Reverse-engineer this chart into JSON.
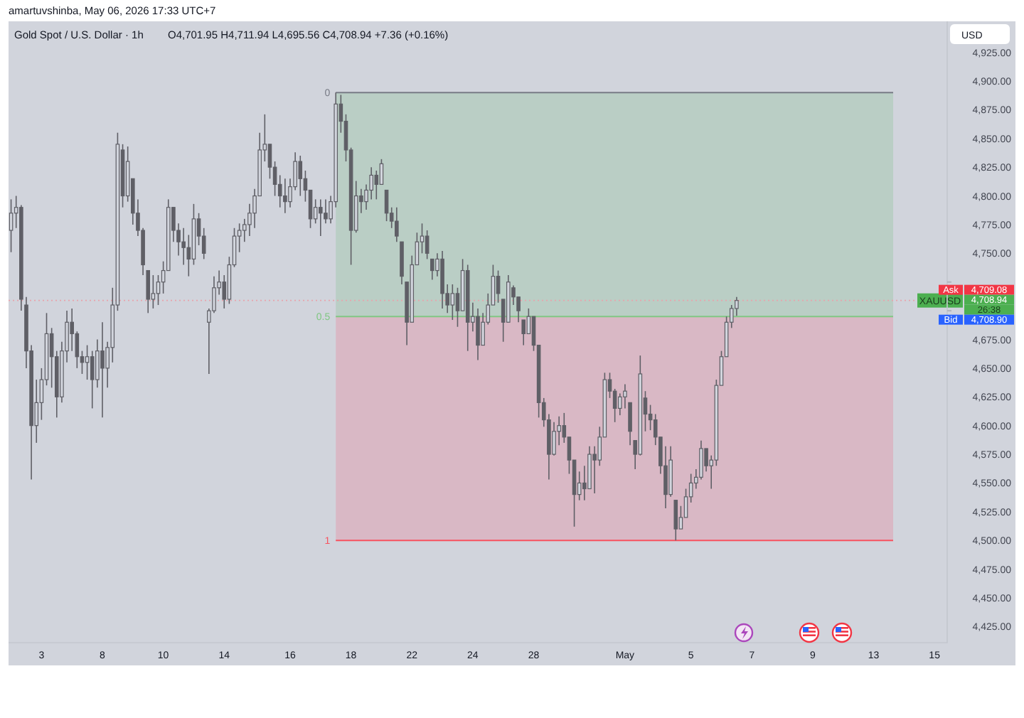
{
  "chart_data": {
    "type": "candlestick",
    "title": "Gold Spot / U.S. Dollar · 1h",
    "ylabel": "USD",
    "color": "#5f5f66",
    "annotations": [
      "amartuvshinba, May 06, 2026 17:33 UTC+7",
      "O4,701.95  H4,711.94  L4,695.56  C4,708.94  +7.36 (+0.16%)",
      "Ask",
      "4,709.08",
      "4,708.94",
      "26:38",
      "Bid",
      "4,708.90",
      "0",
      "0.5",
      "1"
    ],
    "categories": [
      null,
      null,
      null,
      null,
      null,
      null,
      "3",
      null,
      null,
      null,
      null,
      null,
      null,
      null,
      null,
      null,
      null,
      null,
      "8",
      null,
      null,
      null,
      null,
      null,
      null,
      null,
      null,
      null,
      null,
      null,
      "10",
      null,
      null,
      null,
      null,
      null,
      null,
      null,
      null,
      null,
      null,
      null,
      "14",
      null,
      null,
      null,
      null,
      null,
      null,
      null,
      null,
      null,
      null,
      null,
      null,
      "16",
      null,
      null,
      null,
      null,
      null,
      null,
      null,
      null,
      null,
      null,
      null,
      "18",
      null,
      null,
      null,
      null,
      null,
      null,
      null,
      null,
      null,
      null,
      null,
      "22",
      null,
      null,
      null,
      null,
      null,
      null,
      null,
      null,
      null,
      null,
      null,
      "24",
      null,
      null,
      null,
      null,
      null,
      null,
      null,
      null,
      null,
      null,
      null,
      "28",
      null,
      null,
      null,
      null,
      null,
      null,
      null,
      null,
      null,
      null,
      null,
      null,
      null,
      null,
      null,
      null,
      null,
      "May",
      null,
      null,
      null,
      null,
      null,
      null,
      null,
      null,
      null,
      null,
      null,
      null,
      "5",
      null,
      null,
      null,
      null,
      null,
      null,
      null,
      null,
      null,
      null,
      null,
      "7",
      null,
      null,
      null,
      null,
      null,
      null,
      null,
      null,
      null,
      null,
      null,
      "9",
      null,
      null,
      null,
      null,
      null,
      null,
      null,
      null,
      null,
      null,
      null,
      "13",
      null,
      null,
      null,
      null,
      null,
      null,
      null,
      null,
      null,
      null,
      null,
      "15",
      null,
      null
    ],
    "ylim": [
      4411,
      4952
    ],
    "yticks": [
      {
        "value": 4425,
        "label": "4,425.00"
      },
      {
        "value": 4450,
        "label": "4,450.00"
      },
      {
        "value": 4475,
        "label": "4,475.00"
      },
      {
        "value": 4500,
        "label": "4,500.00"
      },
      {
        "value": 4525,
        "label": "4,525.00"
      },
      {
        "value": 4550,
        "label": "4,550.00"
      },
      {
        "value": 4575,
        "label": "4,575.00"
      },
      {
        "value": 4600,
        "label": "4,600.00"
      },
      {
        "value": 4625,
        "label": "4,625.00"
      },
      {
        "value": 4650,
        "label": "4,650.00"
      },
      {
        "value": 4675,
        "label": "4,675.00"
      },
      {
        "value": 4700,
        "label": null
      },
      {
        "value": 4725,
        "label": null
      },
      {
        "value": 4750,
        "label": "4,750.00"
      },
      {
        "value": 4775,
        "label": "4,775.00"
      },
      {
        "value": 4800,
        "label": "4,800.00"
      },
      {
        "value": 4825,
        "label": "4,825.00"
      },
      {
        "value": 4850,
        "label": "4,850.00"
      },
      {
        "value": 4875,
        "label": "4,875.00"
      },
      {
        "value": 4900,
        "label": "4,900.00"
      },
      {
        "value": 4925,
        "label": "4,925.00"
      }
    ],
    "bands": [
      {
        "axis": "y",
        "from": 4695,
        "to": 4890,
        "color": "#bacec5"
      },
      {
        "axis": "y",
        "from": 4500,
        "to": 4695,
        "color": "#d9b8c5"
      }
    ],
    "ref_lines": [
      {
        "axis": "y",
        "value": 4890,
        "color": "#787b86"
      },
      {
        "axis": "y",
        "value": 4695,
        "color": "#81c784"
      },
      {
        "axis": "y",
        "value": 4500,
        "color": "#f7525f"
      },
      {
        "axis": "y",
        "value": 4708.94,
        "label": "XAUUSD",
        "color": "#e8a3ab",
        "line_style": "dotted"
      }
    ],
    "ohlc": [
      [
        4770,
        4797,
        4751,
        4785
      ],
      [
        4785,
        4800,
        4772,
        4790
      ],
      [
        4790,
        4792,
        4700,
        4710
      ],
      [
        4705,
        4712,
        4650,
        4665
      ],
      [
        4665,
        4670,
        4553,
        4600
      ],
      [
        4600,
        4640,
        4585,
        4620
      ],
      [
        4620,
        4650,
        4605,
        4640
      ],
      [
        4640,
        4698,
        4635,
        4680
      ],
      [
        4680,
        4685,
        4633,
        4660
      ],
      [
        4660,
        4665,
        4607,
        4625
      ],
      [
        4625,
        4673,
        4620,
        4665
      ],
      [
        4665,
        4700,
        4655,
        4690
      ],
      [
        4690,
        4702,
        4665,
        4680
      ],
      [
        4680,
        4682,
        4650,
        4660
      ],
      [
        4660,
        4665,
        4645,
        4655
      ],
      [
        4655,
        4670,
        4640,
        4660
      ],
      [
        4660,
        4665,
        4615,
        4640
      ],
      [
        4640,
        4675,
        4633,
        4665
      ],
      [
        4665,
        4690,
        4607,
        4650
      ],
      [
        4650,
        4673,
        4633,
        4668
      ],
      [
        4668,
        4720,
        4655,
        4705
      ],
      [
        4705,
        4855,
        4700,
        4845
      ],
      [
        4840,
        4845,
        4790,
        4800
      ],
      [
        4800,
        4843,
        4795,
        4830
      ],
      [
        4815,
        4815,
        4775,
        4785
      ],
      [
        4785,
        4797,
        4765,
        4770
      ],
      [
        4770,
        4772,
        4731,
        4740
      ],
      [
        4735,
        4735,
        4698,
        4710
      ],
      [
        4710,
        4731,
        4702,
        4715
      ],
      [
        4715,
        4731,
        4705,
        4725
      ],
      [
        4725,
        4743,
        4715,
        4735
      ],
      [
        4735,
        4797,
        4735,
        4790
      ],
      [
        4790,
        4790,
        4760,
        4770
      ],
      [
        4770,
        4776,
        4748,
        4760
      ],
      [
        4760,
        4772,
        4740,
        4755
      ],
      [
        4755,
        4766,
        4730,
        4745
      ],
      [
        4745,
        4793,
        4740,
        4780
      ],
      [
        4780,
        4785,
        4757,
        4765
      ],
      [
        4765,
        4772,
        4745,
        4750
      ],
      [
        4690,
        4702,
        4645,
        4700
      ],
      [
        4700,
        4730,
        4698,
        4720
      ],
      [
        4720,
        4735,
        4714,
        4725
      ],
      [
        4725,
        4731,
        4702,
        4710
      ],
      [
        4710,
        4747,
        4706,
        4740
      ],
      [
        4740,
        4772,
        4738,
        4765
      ],
      [
        4765,
        4776,
        4751,
        4770
      ],
      [
        4770,
        4780,
        4760,
        4775
      ],
      [
        4775,
        4793,
        4765,
        4785
      ],
      [
        4785,
        4806,
        4772,
        4800
      ],
      [
        4800,
        4855,
        4800,
        4840
      ],
      [
        4840,
        4871,
        4830,
        4845
      ],
      [
        4845,
        4845,
        4815,
        4825
      ],
      [
        4825,
        4830,
        4800,
        4810
      ],
      [
        4810,
        4818,
        4790,
        4800
      ],
      [
        4800,
        4815,
        4785,
        4795
      ],
      [
        4795,
        4815,
        4790,
        4808
      ],
      [
        4808,
        4838,
        4805,
        4830
      ],
      [
        4830,
        4835,
        4800,
        4815
      ],
      [
        4815,
        4822,
        4795,
        4805
      ],
      [
        4805,
        4805,
        4772,
        4780
      ],
      [
        4780,
        4797,
        4776,
        4790
      ],
      [
        4790,
        4797,
        4765,
        4785
      ],
      [
        4785,
        4797,
        4776,
        4780
      ],
      [
        4780,
        4800,
        4776,
        4795
      ],
      [
        4795,
        4890,
        4790,
        4880
      ],
      [
        4880,
        4888,
        4855,
        4865
      ],
      [
        4865,
        4871,
        4830,
        4840
      ],
      [
        4840,
        4842,
        4740,
        4770
      ],
      [
        4770,
        4813,
        4768,
        4800
      ],
      [
        4800,
        4806,
        4785,
        4795
      ],
      [
        4795,
        4810,
        4788,
        4805
      ],
      [
        4805,
        4825,
        4797,
        4818
      ],
      [
        4818,
        4822,
        4797,
        4810
      ],
      [
        4810,
        4832,
        4810,
        4828
      ],
      [
        4805,
        4805,
        4778,
        4785
      ],
      [
        4785,
        4790,
        4772,
        4778
      ],
      [
        4778,
        4790,
        4760,
        4765
      ],
      [
        4760,
        4760,
        4723,
        4730
      ],
      [
        4725,
        4725,
        4670,
        4690
      ],
      [
        4690,
        4748,
        4690,
        4740
      ],
      [
        4740,
        4768,
        4740,
        4760
      ],
      [
        4760,
        4776,
        4750,
        4765
      ],
      [
        4765,
        4770,
        4745,
        4750
      ],
      [
        4745,
        4745,
        4727,
        4735
      ],
      [
        4735,
        4750,
        4730,
        4745
      ],
      [
        4745,
        4752,
        4702,
        4715
      ],
      [
        4715,
        4723,
        4698,
        4705
      ],
      [
        4705,
        4723,
        4692,
        4715
      ],
      [
        4715,
        4720,
        4686,
        4700
      ],
      [
        4700,
        4745,
        4700,
        4735
      ],
      [
        4735,
        4740,
        4665,
        4690
      ],
      [
        4690,
        4707,
        4682,
        4695
      ],
      [
        4695,
        4702,
        4657,
        4670
      ],
      [
        4670,
        4698,
        4670,
        4690
      ],
      [
        4690,
        4715,
        4688,
        4705
      ],
      [
        4705,
        4740,
        4705,
        4730
      ],
      [
        4730,
        4735,
        4707,
        4715
      ],
      [
        4710,
        4710,
        4673,
        4690
      ],
      [
        4690,
        4731,
        4690,
        4725
      ],
      [
        4720,
        4722,
        4705,
        4712
      ],
      [
        4712,
        4712,
        4690,
        4700
      ],
      [
        4692,
        4692,
        4670,
        4680
      ],
      [
        4680,
        4702,
        4680,
        4695
      ],
      [
        4695,
        4695,
        4665,
        4670
      ],
      [
        4670,
        4670,
        4607,
        4620
      ],
      [
        4620,
        4624,
        4599,
        4605
      ],
      [
        4605,
        4610,
        4553,
        4575
      ],
      [
        4575,
        4603,
        4574,
        4595
      ],
      [
        4595,
        4608,
        4583,
        4600
      ],
      [
        4600,
        4611,
        4585,
        4590
      ],
      [
        4590,
        4590,
        4558,
        4570
      ],
      [
        4570,
        4570,
        4512,
        4540
      ],
      [
        4540,
        4560,
        4535,
        4550
      ],
      [
        4550,
        4565,
        4535,
        4545
      ],
      [
        4545,
        4582,
        4545,
        4575
      ],
      [
        4575,
        4582,
        4541,
        4570
      ],
      [
        4570,
        4599,
        4565,
        4590
      ],
      [
        4590,
        4646,
        4590,
        4640
      ],
      [
        4640,
        4646,
        4624,
        4630
      ],
      [
        4630,
        4632,
        4603,
        4615
      ],
      [
        4615,
        4628,
        4609,
        4625
      ],
      [
        4625,
        4636,
        4615,
        4630
      ],
      [
        4620,
        4620,
        4583,
        4595
      ],
      [
        4587,
        4587,
        4562,
        4575
      ],
      [
        4575,
        4661,
        4574,
        4645
      ],
      [
        4624,
        4630,
        4595,
        4610
      ],
      [
        4610,
        4618,
        4596,
        4605
      ],
      [
        4605,
        4610,
        4583,
        4590
      ],
      [
        4590,
        4590,
        4558,
        4565
      ],
      [
        4565,
        4582,
        4528,
        4540
      ],
      [
        4540,
        4582,
        4538,
        4570
      ],
      [
        4535,
        4535,
        4500,
        4510
      ],
      [
        4510,
        4530,
        4510,
        4520
      ],
      [
        4520,
        4545,
        4520,
        4538
      ],
      [
        4538,
        4558,
        4533,
        4550
      ],
      [
        4550,
        4562,
        4545,
        4555
      ],
      [
        4555,
        4587,
        4553,
        4580
      ],
      [
        4580,
        4580,
        4560,
        4565
      ],
      [
        4565,
        4574,
        4545,
        4570
      ],
      [
        4570,
        4640,
        4565,
        4635
      ],
      [
        4635,
        4665,
        4635,
        4660
      ],
      [
        4660,
        4695,
        4660,
        4690
      ],
      [
        4690,
        4705,
        4685,
        4701.95
      ],
      [
        4701.95,
        4711.94,
        4695.56,
        4708.94
      ],
      null,
      null,
      null,
      null,
      null,
      null,
      null,
      null,
      null,
      null,
      null,
      null,
      null,
      null,
      null,
      null,
      null,
      null,
      null,
      null,
      null,
      null,
      null,
      null,
      null,
      null,
      null,
      null,
      null,
      null,
      null,
      null,
      null,
      null,
      null,
      null,
      null,
      null,
      null,
      null,
      null
    ]
  }
}
